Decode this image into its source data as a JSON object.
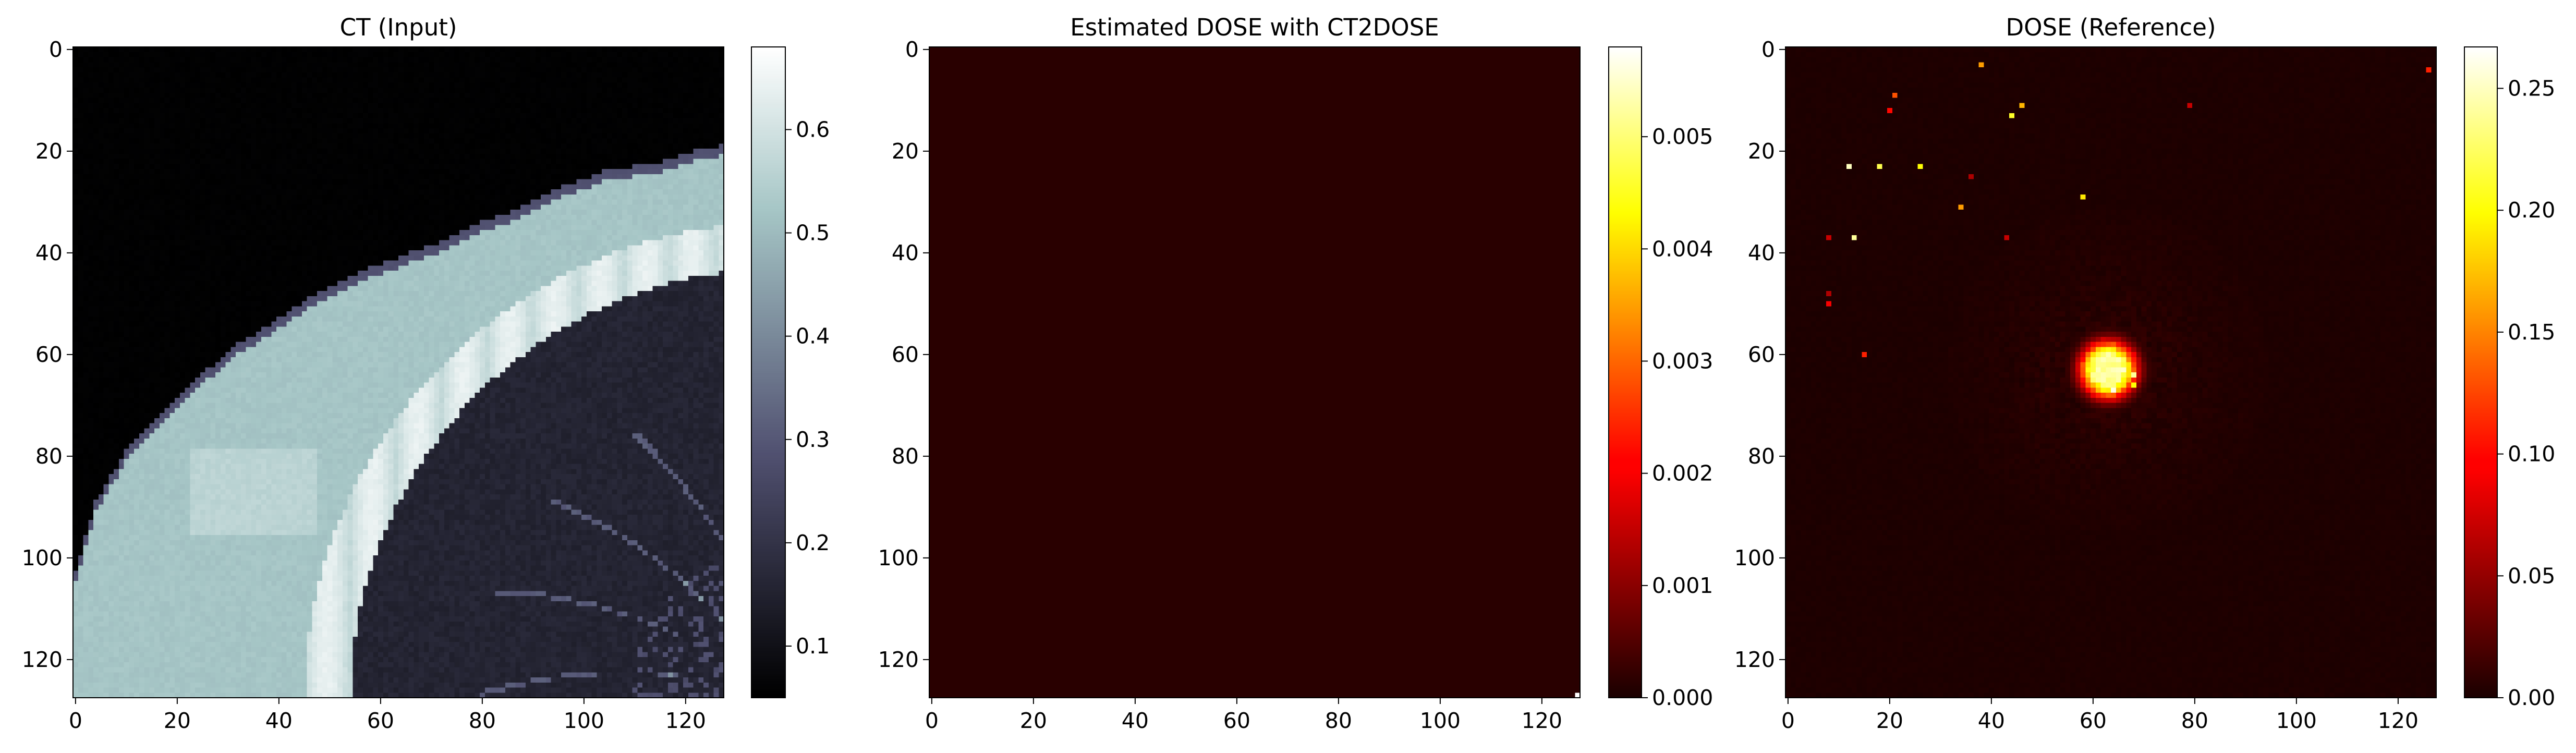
{
  "chart_data": [
    {
      "type": "heatmap",
      "title": "CT (Input)",
      "xlabel": "",
      "ylabel": "",
      "xlim": [
        -0.5,
        127.5
      ],
      "ylim": [
        127.5,
        -0.5
      ],
      "x_ticks": [
        0,
        20,
        40,
        60,
        80,
        100,
        120
      ],
      "y_ticks": [
        0,
        20,
        40,
        60,
        80,
        100,
        120
      ],
      "colormap": "bone",
      "colorbar": {
        "range": [
          0.05,
          0.68
        ],
        "ticks": [
          0.1,
          0.2,
          0.3,
          0.4,
          0.5,
          0.6
        ],
        "tick_labels": [
          "0.1",
          "0.2",
          "0.3",
          "0.4",
          "0.5",
          "0.6"
        ]
      },
      "content": {
        "background": 0.05,
        "soft_tissue": 0.52,
        "bone_ring": 0.63,
        "lung": 0.14,
        "outer_boundary": [
          [
            0,
            104
          ],
          [
            4,
            90
          ],
          [
            10,
            80
          ],
          [
            18,
            72
          ],
          [
            26,
            64
          ],
          [
            32,
            59
          ],
          [
            40,
            54
          ],
          [
            46,
            50
          ],
          [
            52,
            47
          ],
          [
            58,
            44
          ],
          [
            66,
            41
          ],
          [
            72,
            39
          ],
          [
            80,
            35
          ],
          [
            88,
            32
          ],
          [
            96,
            28
          ],
          [
            104,
            25
          ],
          [
            110,
            24
          ],
          [
            116,
            23
          ],
          [
            122,
            21
          ],
          [
            127,
            20
          ]
        ],
        "lung_arc": {
          "center": [
            139,
            128
          ],
          "radius": 85
        },
        "bone_arc": {
          "center": [
            139,
            128
          ],
          "inner_radius": 85,
          "outer_radius": 94
        }
      }
    },
    {
      "type": "heatmap",
      "title": "Estimated DOSE with CT2DOSE",
      "xlabel": "",
      "ylabel": "",
      "xlim": [
        -0.5,
        127.5
      ],
      "ylim": [
        127.5,
        -0.5
      ],
      "x_ticks": [
        0,
        20,
        40,
        60,
        80,
        100,
        120
      ],
      "y_ticks": [
        0,
        20,
        40,
        60,
        80,
        100,
        120
      ],
      "colormap": "hot",
      "colorbar": {
        "range": [
          0,
          0.0058
        ],
        "ticks": [
          0,
          0.001,
          0.002,
          0.003,
          0.004,
          0.005
        ],
        "tick_labels": [
          "0.000",
          "0.001",
          "0.002",
          "0.003",
          "0.004",
          "0.005"
        ]
      },
      "content": {
        "background": 0.00012,
        "points": [
          {
            "x": 127,
            "y": 127,
            "value": 0.0058
          }
        ]
      }
    },
    {
      "type": "heatmap",
      "title": "DOSE (Reference)",
      "xlabel": "",
      "ylabel": "",
      "xlim": [
        -0.5,
        127.5
      ],
      "ylim": [
        127.5,
        -0.5
      ],
      "x_ticks": [
        0,
        20,
        40,
        60,
        80,
        100,
        120
      ],
      "y_ticks": [
        0,
        20,
        40,
        60,
        80,
        100,
        120
      ],
      "colormap": "hot",
      "colorbar": {
        "range": [
          0,
          0.267
        ],
        "ticks": [
          0,
          0.05,
          0.1,
          0.15,
          0.2,
          0.25
        ],
        "tick_labels": [
          "0.00",
          "0.05",
          "0.10",
          "0.15",
          "0.20",
          "0.25"
        ]
      },
      "content": {
        "background": 0.002,
        "hotspot": {
          "center": [
            63,
            63
          ],
          "peak": 0.26,
          "core_radius": 2.5,
          "halo_radius": 9
        },
        "points": [
          {
            "x": 38,
            "y": 3,
            "value": 0.16
          },
          {
            "x": 126,
            "y": 4,
            "value": 0.11
          },
          {
            "x": 21,
            "y": 9,
            "value": 0.13
          },
          {
            "x": 46,
            "y": 11,
            "value": 0.17
          },
          {
            "x": 79,
            "y": 11,
            "value": 0.07
          },
          {
            "x": 20,
            "y": 12,
            "value": 0.1
          },
          {
            "x": 44,
            "y": 13,
            "value": 0.21
          },
          {
            "x": 12,
            "y": 23,
            "value": 0.25
          },
          {
            "x": 18,
            "y": 23,
            "value": 0.22
          },
          {
            "x": 26,
            "y": 23,
            "value": 0.2
          },
          {
            "x": 36,
            "y": 25,
            "value": 0.06
          },
          {
            "x": 58,
            "y": 29,
            "value": 0.19
          },
          {
            "x": 34,
            "y": 31,
            "value": 0.16
          },
          {
            "x": 8,
            "y": 37,
            "value": 0.07
          },
          {
            "x": 13,
            "y": 37,
            "value": 0.24
          },
          {
            "x": 43,
            "y": 37,
            "value": 0.07
          },
          {
            "x": 8,
            "y": 48,
            "value": 0.06
          },
          {
            "x": 8,
            "y": 50,
            "value": 0.09
          },
          {
            "x": 15,
            "y": 60,
            "value": 0.11
          },
          {
            "x": 68,
            "y": 64,
            "value": 0.24
          },
          {
            "x": 68,
            "y": 66,
            "value": 0.2
          },
          {
            "x": 64,
            "y": 67,
            "value": 0.26
          }
        ]
      }
    }
  ]
}
